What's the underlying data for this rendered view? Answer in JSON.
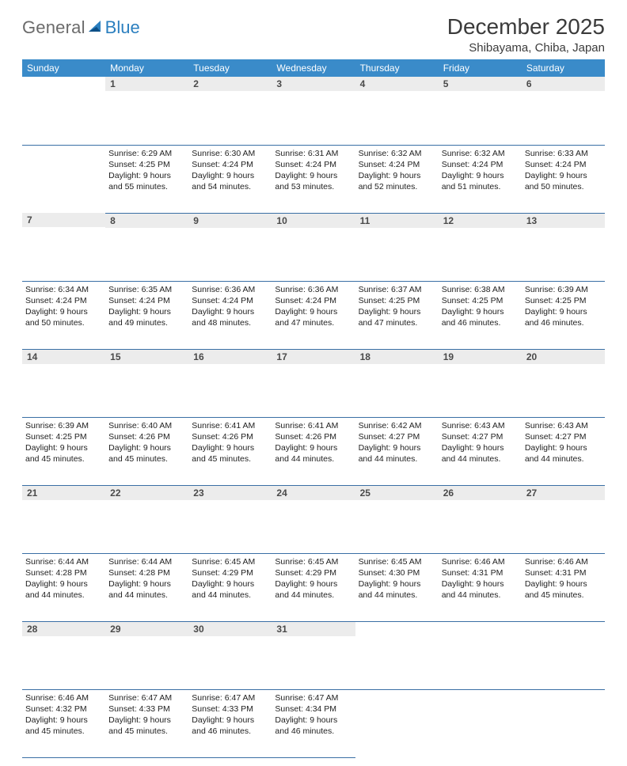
{
  "logo": {
    "text1": "General",
    "text2": "Blue"
  },
  "title": "December 2025",
  "location": "Shibayama, Chiba, Japan",
  "colors": {
    "header_bg": "#3a8bc9",
    "header_text": "#ffffff",
    "daynum_bg": "#ececec",
    "rule": "#3a6fa5",
    "logo_gray": "#6b6b6b",
    "logo_blue": "#2b7fbf"
  },
  "weekdays": [
    "Sunday",
    "Monday",
    "Tuesday",
    "Wednesday",
    "Thursday",
    "Friday",
    "Saturday"
  ],
  "first_weekday": 1,
  "days": [
    {
      "n": 1,
      "sunrise": "6:29 AM",
      "sunset": "4:25 PM",
      "daylight": "9 hours and 55 minutes."
    },
    {
      "n": 2,
      "sunrise": "6:30 AM",
      "sunset": "4:24 PM",
      "daylight": "9 hours and 54 minutes."
    },
    {
      "n": 3,
      "sunrise": "6:31 AM",
      "sunset": "4:24 PM",
      "daylight": "9 hours and 53 minutes."
    },
    {
      "n": 4,
      "sunrise": "6:32 AM",
      "sunset": "4:24 PM",
      "daylight": "9 hours and 52 minutes."
    },
    {
      "n": 5,
      "sunrise": "6:32 AM",
      "sunset": "4:24 PM",
      "daylight": "9 hours and 51 minutes."
    },
    {
      "n": 6,
      "sunrise": "6:33 AM",
      "sunset": "4:24 PM",
      "daylight": "9 hours and 50 minutes."
    },
    {
      "n": 7,
      "sunrise": "6:34 AM",
      "sunset": "4:24 PM",
      "daylight": "9 hours and 50 minutes."
    },
    {
      "n": 8,
      "sunrise": "6:35 AM",
      "sunset": "4:24 PM",
      "daylight": "9 hours and 49 minutes."
    },
    {
      "n": 9,
      "sunrise": "6:36 AM",
      "sunset": "4:24 PM",
      "daylight": "9 hours and 48 minutes."
    },
    {
      "n": 10,
      "sunrise": "6:36 AM",
      "sunset": "4:24 PM",
      "daylight": "9 hours and 47 minutes."
    },
    {
      "n": 11,
      "sunrise": "6:37 AM",
      "sunset": "4:25 PM",
      "daylight": "9 hours and 47 minutes."
    },
    {
      "n": 12,
      "sunrise": "6:38 AM",
      "sunset": "4:25 PM",
      "daylight": "9 hours and 46 minutes."
    },
    {
      "n": 13,
      "sunrise": "6:39 AM",
      "sunset": "4:25 PM",
      "daylight": "9 hours and 46 minutes."
    },
    {
      "n": 14,
      "sunrise": "6:39 AM",
      "sunset": "4:25 PM",
      "daylight": "9 hours and 45 minutes."
    },
    {
      "n": 15,
      "sunrise": "6:40 AM",
      "sunset": "4:26 PM",
      "daylight": "9 hours and 45 minutes."
    },
    {
      "n": 16,
      "sunrise": "6:41 AM",
      "sunset": "4:26 PM",
      "daylight": "9 hours and 45 minutes."
    },
    {
      "n": 17,
      "sunrise": "6:41 AM",
      "sunset": "4:26 PM",
      "daylight": "9 hours and 44 minutes."
    },
    {
      "n": 18,
      "sunrise": "6:42 AM",
      "sunset": "4:27 PM",
      "daylight": "9 hours and 44 minutes."
    },
    {
      "n": 19,
      "sunrise": "6:43 AM",
      "sunset": "4:27 PM",
      "daylight": "9 hours and 44 minutes."
    },
    {
      "n": 20,
      "sunrise": "6:43 AM",
      "sunset": "4:27 PM",
      "daylight": "9 hours and 44 minutes."
    },
    {
      "n": 21,
      "sunrise": "6:44 AM",
      "sunset": "4:28 PM",
      "daylight": "9 hours and 44 minutes."
    },
    {
      "n": 22,
      "sunrise": "6:44 AM",
      "sunset": "4:28 PM",
      "daylight": "9 hours and 44 minutes."
    },
    {
      "n": 23,
      "sunrise": "6:45 AM",
      "sunset": "4:29 PM",
      "daylight": "9 hours and 44 minutes."
    },
    {
      "n": 24,
      "sunrise": "6:45 AM",
      "sunset": "4:29 PM",
      "daylight": "9 hours and 44 minutes."
    },
    {
      "n": 25,
      "sunrise": "6:45 AM",
      "sunset": "4:30 PM",
      "daylight": "9 hours and 44 minutes."
    },
    {
      "n": 26,
      "sunrise": "6:46 AM",
      "sunset": "4:31 PM",
      "daylight": "9 hours and 44 minutes."
    },
    {
      "n": 27,
      "sunrise": "6:46 AM",
      "sunset": "4:31 PM",
      "daylight": "9 hours and 45 minutes."
    },
    {
      "n": 28,
      "sunrise": "6:46 AM",
      "sunset": "4:32 PM",
      "daylight": "9 hours and 45 minutes."
    },
    {
      "n": 29,
      "sunrise": "6:47 AM",
      "sunset": "4:33 PM",
      "daylight": "9 hours and 45 minutes."
    },
    {
      "n": 30,
      "sunrise": "6:47 AM",
      "sunset": "4:33 PM",
      "daylight": "9 hours and 46 minutes."
    },
    {
      "n": 31,
      "sunrise": "6:47 AM",
      "sunset": "4:34 PM",
      "daylight": "9 hours and 46 minutes."
    }
  ],
  "labels": {
    "sunrise": "Sunrise:",
    "sunset": "Sunset:",
    "daylight": "Daylight:"
  }
}
